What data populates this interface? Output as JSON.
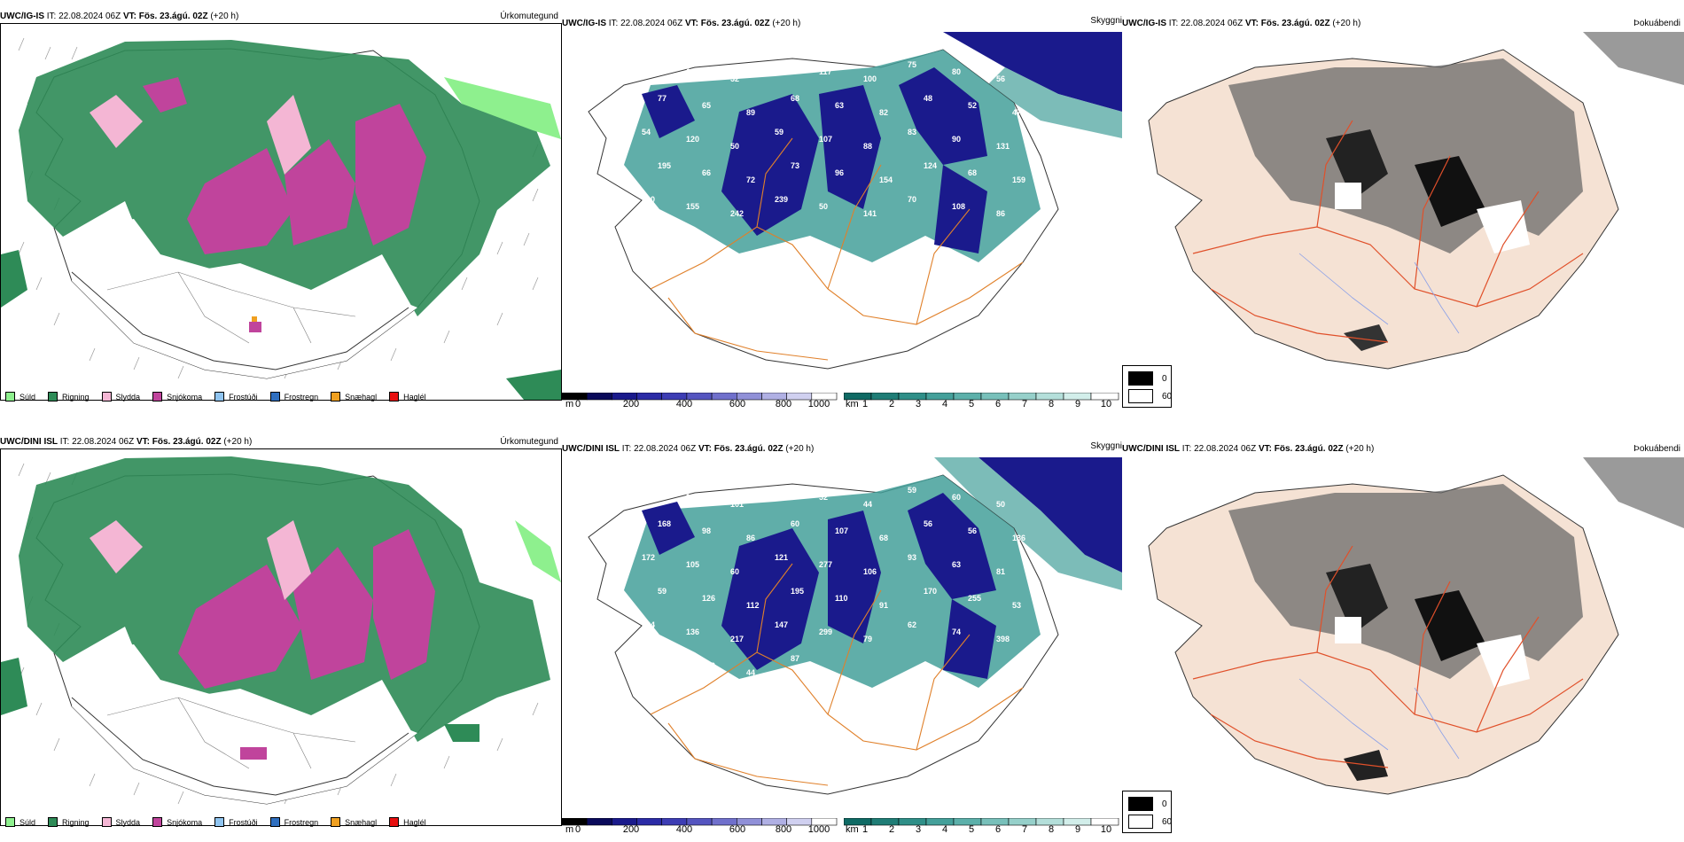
{
  "rows": [
    {
      "model": "UWC/IG-IS",
      "it_label": "IT:",
      "it_value": "22.08.2024 06Z",
      "vt_label": "VT:",
      "vt_value": "Fös. 23.ágú. 02Z",
      "lead": "(+20 h)",
      "precip_title": "Úrkomutegund",
      "vis_title": "Skyggni",
      "fog_title": "Þokuábendi",
      "vis_numbers": [
        "130",
        "61",
        "52",
        "220",
        "117",
        "100",
        "75",
        "80",
        "56",
        "77",
        "65",
        "89",
        "68",
        "63",
        "82",
        "48",
        "52",
        "47",
        "54",
        "120",
        "50",
        "59",
        "107",
        "88",
        "83",
        "90",
        "131",
        "195",
        "66",
        "72",
        "73",
        "96",
        "154",
        "124",
        "68",
        "159",
        "190",
        "155",
        "242",
        "239",
        "50",
        "141",
        "70",
        "108",
        "86",
        "32",
        "36"
      ]
    },
    {
      "model": "UWC/DINI ISL",
      "it_label": "IT:",
      "it_value": "22.08.2024 06Z",
      "vt_label": "VT:",
      "vt_value": "Fös. 23.ágú. 02Z",
      "lead": "(+20 h)",
      "precip_title": "Úrkomutegund",
      "vis_title": "Skyggni",
      "fog_title": "Þokuábendi",
      "vis_numbers": [
        "194",
        "97",
        "101",
        "94",
        "52",
        "44",
        "59",
        "60",
        "50",
        "168",
        "98",
        "86",
        "60",
        "107",
        "68",
        "56",
        "56",
        "136",
        "172",
        "105",
        "60",
        "121",
        "277",
        "106",
        "93",
        "63",
        "81",
        "59",
        "126",
        "112",
        "195",
        "110",
        "91",
        "170",
        "255",
        "53",
        "164",
        "136",
        "217",
        "147",
        "299",
        "79",
        "62",
        "74",
        "398",
        "277",
        "290",
        "44",
        "87"
      ]
    }
  ],
  "precip_legend": [
    {
      "label": "Súld",
      "color": "#8ef08e"
    },
    {
      "label": "Rigning",
      "color": "#2e8b57"
    },
    {
      "label": "Slydda",
      "color": "#f4b6d4"
    },
    {
      "label": "Snjókoma",
      "color": "#c0449c"
    },
    {
      "label": "Frostúði",
      "color": "#8fc4f0"
    },
    {
      "label": "Frostregn",
      "color": "#2f6fc0"
    },
    {
      "label": "Snæhagl",
      "color": "#f0a020"
    },
    {
      "label": "Haglél",
      "color": "#e81010"
    }
  ],
  "ceiling_bar": {
    "unit": "m",
    "ticks": [
      "0",
      "200",
      "400",
      "600",
      "800",
      "1000"
    ],
    "colors": [
      "#000000",
      "#0a0a5a",
      "#1a1a8c",
      "#2b2ba6",
      "#3d3db4",
      "#5555c0",
      "#7070cc",
      "#9090d8",
      "#b0b0e4",
      "#d0d0f0",
      "#ffffff"
    ]
  },
  "visibility_bar": {
    "unit": "km",
    "ticks": [
      "1",
      "2",
      "3",
      "4",
      "5",
      "6",
      "7",
      "8",
      "9",
      "10"
    ],
    "colors": [
      "#0f6a64",
      "#1f7d76",
      "#2f8f88",
      "#44a09a",
      "#5cb0aa",
      "#78c0ba",
      "#96d0ca",
      "#b4dfda",
      "#d2eeea",
      "#ffffff"
    ]
  },
  "fog_legend": [
    {
      "label": "0",
      "color": "#000000"
    },
    {
      "label": "60",
      "color": "#ffffff"
    }
  ],
  "colors": {
    "rain": "#2e8b57",
    "drizzle": "#8ef08e",
    "sleet": "#f4b6d4",
    "snow": "#c0449c",
    "vis_low": "#1a1a8c",
    "vis_mid": "#44a09a",
    "roads": "#e0802a",
    "land_fog": "#f5e2d4",
    "fog_gray": "#6a6a6a"
  }
}
